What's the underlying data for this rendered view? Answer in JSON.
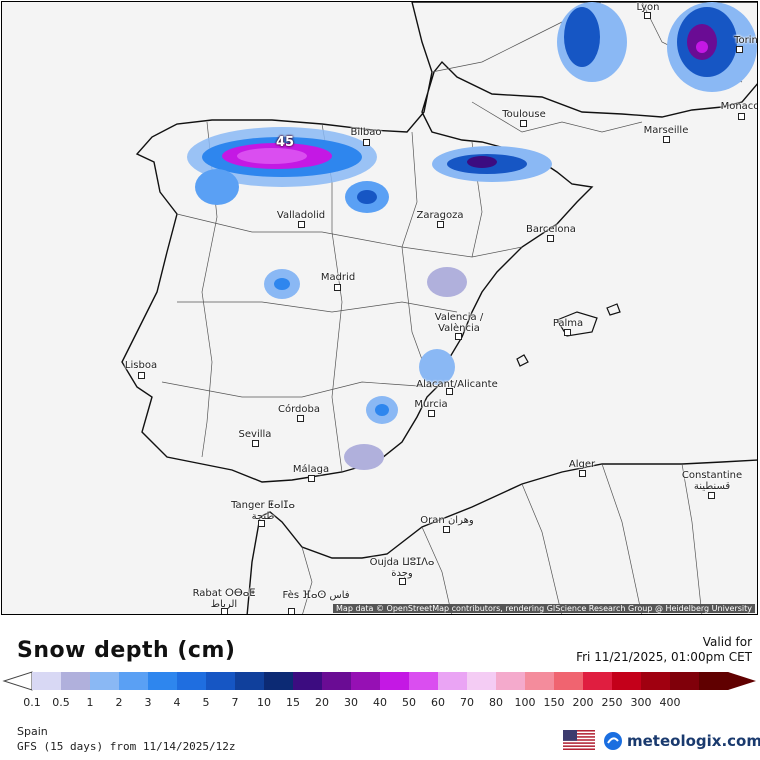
{
  "map": {
    "attribution": "Map data © OpenStreetMap contributors, rendering GIScience Research Group @ Heidelberg University",
    "peak_label": "45",
    "cities": [
      {
        "name": "Lyon"
      },
      {
        "name": "Torin"
      },
      {
        "name": "Monaco"
      },
      {
        "name": "Marseille"
      },
      {
        "name": "Toulouse"
      },
      {
        "name": "Bilbao"
      },
      {
        "name": "Valladolid"
      },
      {
        "name": "Zaragoza"
      },
      {
        "name": "Barcelona"
      },
      {
        "name": "Madrid"
      },
      {
        "name": "Valencia / València"
      },
      {
        "name": "Palma"
      },
      {
        "name": "Lisboa"
      },
      {
        "name": "Alacant/Alicante"
      },
      {
        "name": "Murcia"
      },
      {
        "name": "Córdoba"
      },
      {
        "name": "Sevilla"
      },
      {
        "name": "Málaga"
      },
      {
        "name": "Alger"
      },
      {
        "name": "Constantine قسنطينة"
      },
      {
        "name": "Tanger ⵟⴰⵏⵊⴰ طنجة"
      },
      {
        "name": "Oran وهران"
      },
      {
        "name": "Oujda ⵡⵓⵊⴷⴰ وجدة"
      },
      {
        "name": "Rabat ⵔⴱⴰⵟ الرباط"
      },
      {
        "name": "Fès ⴼⴰⵙ فاس"
      }
    ]
  },
  "legend": {
    "title": "Snow depth (cm)",
    "valid_label": "Valid for",
    "valid_time": "Fri 11/21/2025, 01:00pm CET",
    "ticks": [
      "0.1",
      "0.5",
      "1",
      "2",
      "3",
      "4",
      "5",
      "7",
      "10",
      "15",
      "20",
      "30",
      "40",
      "50",
      "60",
      "70",
      "80",
      "100",
      "150",
      "200",
      "250",
      "300",
      "400"
    ],
    "colors": [
      "#d8d8f4",
      "#b0b0dc",
      "#8ab8f4",
      "#5aa0f4",
      "#2e86ee",
      "#1f6ee0",
      "#1656c4",
      "#10409c",
      "#0c2a74",
      "#3c0c80",
      "#6a0c94",
      "#9610b4",
      "#c418e4",
      "#da4ef0",
      "#eaa4f4",
      "#f4ccf4",
      "#f4aacc",
      "#f48c9c",
      "#f06470",
      "#e01e40",
      "#c4001a",
      "#a00010",
      "#80000a",
      "#600000"
    ],
    "region": "Spain",
    "model": "GFS (15 days) from 11/14/2025/12z",
    "brand": "meteologix.com"
  }
}
